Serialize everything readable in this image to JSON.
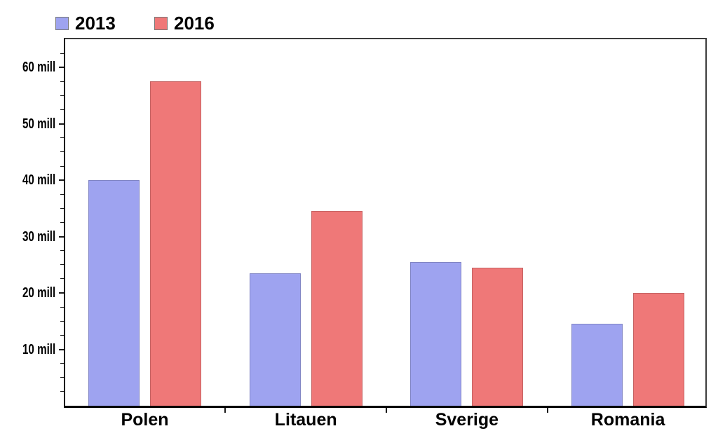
{
  "chart_data": {
    "type": "bar",
    "title": "",
    "categories": [
      "Polen",
      "Litauen",
      "Sverige",
      "Romania"
    ],
    "series": [
      {
        "name": "2013",
        "values": [
          40,
          23.5,
          25.5,
          14.5
        ],
        "color": "#9ea3f0",
        "border_color": "#8084c4"
      },
      {
        "name": "2016",
        "values": [
          57.5,
          34.5,
          24.5,
          20
        ],
        "color": "#ef7878",
        "border_color": "#c46262"
      }
    ],
    "unit": "mill",
    "ylabel": "",
    "xlabel": "",
    "ylim": [
      0,
      65
    ],
    "y_major_ticks": [
      {
        "value": 10,
        "label": "10 mill"
      },
      {
        "value": 20,
        "label": "20 mill"
      },
      {
        "value": 30,
        "label": "30 mill"
      },
      {
        "value": 40,
        "label": "40 mill"
      },
      {
        "value": 50,
        "label": "50 mill"
      },
      {
        "value": 60,
        "label": "60 mill"
      }
    ],
    "y_minor_tick_step": 2.5,
    "grid": false,
    "legend_position": "top-left",
    "axis_color": "#000000",
    "background_color": "#ffffff"
  },
  "legend": {
    "items": [
      {
        "label": "2013",
        "color": "#9ea3f0"
      },
      {
        "label": "2016",
        "color": "#ef7878"
      }
    ]
  }
}
